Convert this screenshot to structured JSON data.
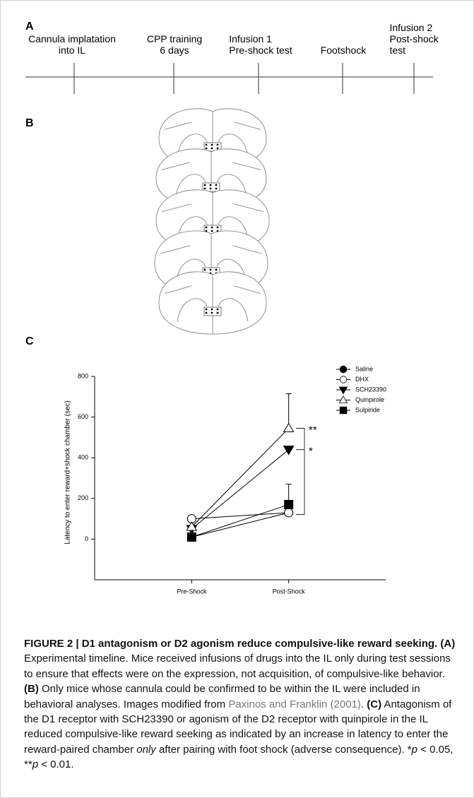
{
  "panels": {
    "a": "A",
    "b": "B",
    "c": "C"
  },
  "timeline": {
    "events": [
      "Cannula implatation\ninto IL",
      "CPP training\n6 days",
      "Infusion 1\nPre-shock test",
      "Footshock",
      "Infusion 2\nPost-shock test"
    ]
  },
  "chart_data": {
    "type": "line",
    "ylabel": "Latency to enter reward+shock chamber (sec)",
    "categories": [
      "Pre-Shock",
      "Post-Shock"
    ],
    "ylim": [
      -200,
      800
    ],
    "yticks": [
      0,
      200,
      400,
      600,
      800
    ],
    "legend": "top-right",
    "series": [
      {
        "name": "Saline",
        "color": "#000000",
        "marker": "circle",
        "fill": "#000000",
        "values": [
          10,
          130
        ]
      },
      {
        "name": "DHX",
        "color": "#000000",
        "marker": "circle",
        "fill": "#ffffff",
        "values": [
          100,
          130
        ]
      },
      {
        "name": "SCH23390",
        "color": "#000000",
        "marker": "triangle-down",
        "fill": "#000000",
        "values": [
          50,
          440
        ]
      },
      {
        "name": "Quinpirole",
        "color": "#000000",
        "marker": "triangle-up",
        "fill": "#ffffff",
        "values": [
          60,
          545
        ],
        "errors": [
          null,
          170
        ]
      },
      {
        "name": "Sulpiride",
        "color": "#000000",
        "marker": "square",
        "fill": "#000000",
        "values": [
          10,
          170
        ],
        "errors": [
          null,
          100
        ]
      }
    ],
    "annotations": [
      {
        "text": "**",
        "y": 545
      },
      {
        "text": "*",
        "y": 440
      }
    ]
  },
  "caption": {
    "parts": [
      "FIGURE 2 | D1 antagonism or D2 agonism reduce compulsive-like reward seeking.",
      " (A)",
      " Experimental timeline. Mice received infusions of drugs into the IL only during test sessions to ensure that effects were on the expression, not acquisition, of compulsive-like behavior. ",
      "(B)",
      " Only mice whose cannula could be confirmed to be within the IL were included in behavioral analyses. Images modified from ",
      "Paxinos and Franklin (2001)",
      ". ",
      "(C)",
      " Antagonism of the D1 receptor with SCH23390 or agonism of the D2 receptor with quinpirole in the IL reduced compulsive-like reward seeking as indicated by an increase in latency to enter the reward-paired chamber ",
      "only",
      " after pairing with foot shock (adverse consequence). *",
      "p",
      " < 0.05, **",
      "p",
      " < 0.01."
    ]
  }
}
